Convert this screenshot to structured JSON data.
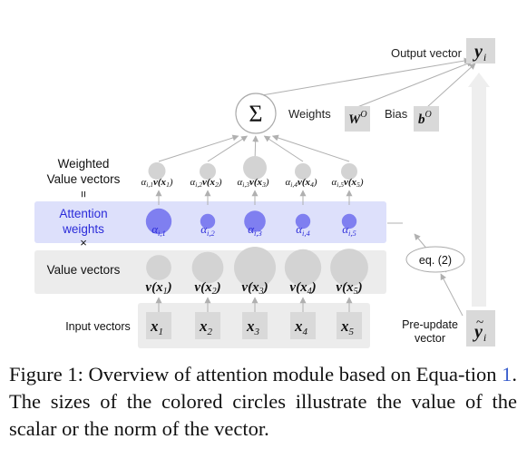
{
  "labels": {
    "output_vector": "Output vector",
    "weights": "Weights",
    "bias": "Bias",
    "weighted_line1": "Weighted",
    "weighted_line2": "Value vectors",
    "equals_sign": "=",
    "attention_line1": "Attention",
    "attention_line2": "weights",
    "times_sign": "×",
    "value_vectors": "Value vectors",
    "input_vectors": "Input vectors",
    "eq_ref": "eq. (2)",
    "preupdate_line1": "Pre-update",
    "preupdate_line2": "vector",
    "sum_symbol": "Σ"
  },
  "symbols": {
    "output": "y",
    "output_sub": "i",
    "weight": "W",
    "weight_sup": "O",
    "bias": "b",
    "bias_sup": "O",
    "preupdate": "y",
    "preupdate_sub": "i",
    "preupdate_accent": "~"
  },
  "columns": [
    {
      "index": "1",
      "weighted": "α",
      "wsub": "i,1",
      "attn": "α",
      "asub": "i,1",
      "value": "v(x",
      "vsub": "1",
      "input": "x",
      "isub": "1",
      "attn_level": 0.85,
      "value_level": 0.35,
      "weighted_level": 0.35
    },
    {
      "index": "2",
      "weighted": "α",
      "wsub": "i,2",
      "attn": "α",
      "asub": "i,2",
      "value": "v(x",
      "vsub": "2",
      "input": "x",
      "isub": "2",
      "attn_level": 0.35,
      "value_level": 0.6,
      "weighted_level": 0.3
    },
    {
      "index": "3",
      "weighted": "α",
      "wsub": "i,3",
      "attn": "α",
      "asub": "i,3",
      "value": "v(x",
      "vsub": "3",
      "input": "x",
      "isub": "3",
      "attn_level": 0.65,
      "value_level": 1.0,
      "weighted_level": 0.7
    },
    {
      "index": "4",
      "weighted": "α",
      "wsub": "i,4",
      "attn": "α",
      "asub": "i,4",
      "value": "v(x",
      "vsub": "4",
      "input": "x",
      "isub": "4",
      "attn_level": 0.35,
      "value_level": 0.8,
      "weighted_level": 0.3
    },
    {
      "index": "5",
      "weighted": "α",
      "wsub": "i,5",
      "attn": "α",
      "asub": "i,5",
      "value": "v(x",
      "vsub": "5",
      "input": "x",
      "isub": "5",
      "attn_level": 0.35,
      "value_level": 0.85,
      "weighted_level": 0.3
    }
  ],
  "caption": {
    "prefix": "Figure 1: Overview of attention module based on Equa-tion ",
    "ref": "1",
    "suffix": ".  The sizes of the colored circles illustrate the value of the scalar or the norm of the vector."
  },
  "colors": {
    "band": "#ececec",
    "attention_band": "#dde0fb",
    "attention_text": "#2b2bd9",
    "attention_circle": "#7f7ff0",
    "gray_circle": "#d3d3d3",
    "arrow": "#b0b0b0",
    "symbol_box": "#d9d9d9"
  }
}
